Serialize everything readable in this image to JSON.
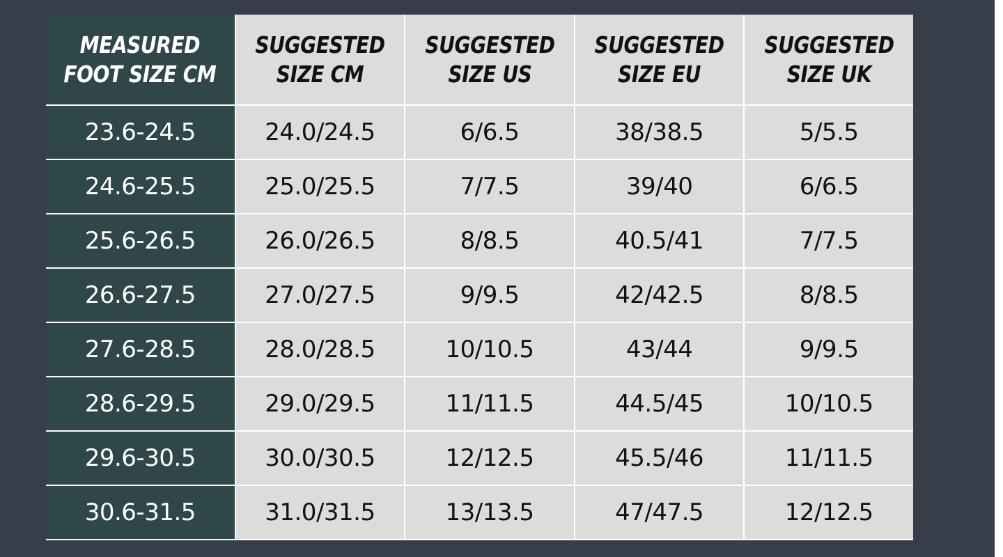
{
  "colors": {
    "background": "#373e4a",
    "first_column": "#2f4749",
    "cells": "#dcdcdc",
    "grid": "#ffffff"
  },
  "table": {
    "headers": [
      [
        "MEASURED",
        "FOOT SIZE CM"
      ],
      [
        "SUGGESTED",
        "SIZE CM"
      ],
      [
        "SUGGESTED",
        "SIZE US"
      ],
      [
        "SUGGESTED",
        "SIZE EU"
      ],
      [
        "SUGGESTED",
        "SIZE UK"
      ]
    ],
    "rows": [
      [
        "23.6-24.5",
        "24.0/24.5",
        "6/6.5",
        "38/38.5",
        "5/5.5"
      ],
      [
        "24.6-25.5",
        "25.0/25.5",
        "7/7.5",
        "39/40",
        "6/6.5"
      ],
      [
        "25.6-26.5",
        "26.0/26.5",
        "8/8.5",
        "40.5/41",
        "7/7.5"
      ],
      [
        "26.6-27.5",
        "27.0/27.5",
        "9/9.5",
        "42/42.5",
        "8/8.5"
      ],
      [
        "27.6-28.5",
        "28.0/28.5",
        "10/10.5",
        "43/44",
        "9/9.5"
      ],
      [
        "28.6-29.5",
        "29.0/29.5",
        "11/11.5",
        "44.5/45",
        "10/10.5"
      ],
      [
        "29.6-30.5",
        "30.0/30.5",
        "12/12.5",
        "45.5/46",
        "11/11.5"
      ],
      [
        "30.6-31.5",
        "31.0/31.5",
        "13/13.5",
        "47/47.5",
        "12/12.5"
      ]
    ]
  }
}
